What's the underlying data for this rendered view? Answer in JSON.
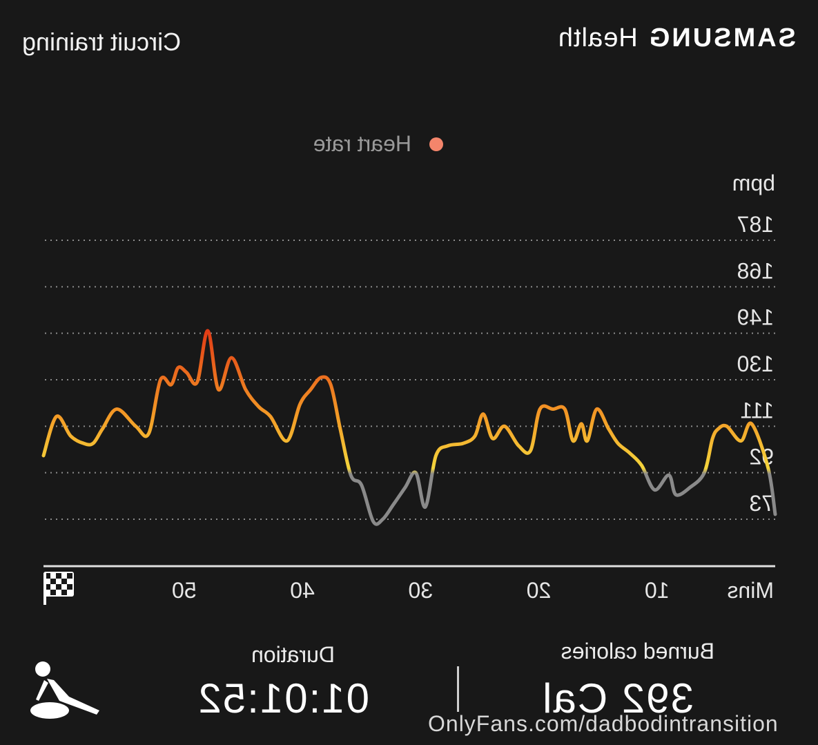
{
  "header": {
    "brand": "SAMSUNG",
    "brand_sub": "Health",
    "activity_title": "Circuit training"
  },
  "legend": {
    "label": "Heart rate",
    "dot_color": "#f4856b"
  },
  "chart_data": {
    "type": "line",
    "title": "",
    "xlabel": "Mins",
    "ylabel": "bpm",
    "x_ticks": [
      10,
      20,
      30,
      40,
      50
    ],
    "x_tick_labels": [
      "10",
      "20",
      "30",
      "40",
      "50"
    ],
    "xlim": [
      0,
      61.9
    ],
    "y_ticks": [
      73,
      92,
      111,
      130,
      149,
      168,
      187
    ],
    "y_tick_labels": [
      "73",
      "92",
      "111",
      "130",
      "149",
      "168",
      "187"
    ],
    "ylim": [
      73,
      187
    ],
    "grid": true,
    "end_icon": "checkered-flag-icon",
    "colors": {
      "low": "#8a8a8a",
      "mid": "#f4d53c",
      "high": "#e23c16"
    },
    "series": [
      {
        "name": "Heart rate",
        "x": [
          0,
          0.6,
          2.0,
          2.9,
          4.1,
          4.8,
          5.3,
          6.0,
          7.2,
          8.4,
          9.0,
          10.2,
          11.3,
          12.3,
          13.3,
          14.1,
          15.1,
          15.9,
          16.4,
          17.1,
          17.8,
          18.8,
          19.9,
          20.7,
          21.7,
          22.9,
          23.9,
          24.7,
          25.4,
          26.4,
          27.7,
          28.7,
          29.6,
          30.4,
          31.3,
          32.3,
          33.2,
          34.0,
          35.0,
          35.9,
          36.8,
          37.6,
          38.4,
          39.3,
          40.2,
          41.3,
          42.7,
          43.7,
          44.8,
          46.0,
          47.1,
          48.0,
          48.9,
          49.8,
          50.5,
          51.1,
          52.0,
          53.0,
          54.1,
          55.7,
          56.9,
          57.7,
          58.5,
          59.6,
          60.8,
          61.9
        ],
        "y": [
          75,
          94,
          112,
          105,
          111,
          110,
          106,
          92,
          86,
          83,
          91,
          85,
          95,
          100,
          104,
          110,
          118,
          105,
          112,
          105,
          118,
          118,
          118,
          101,
          103,
          111,
          106,
          116,
          107,
          104,
          103,
          99,
          78,
          92,
          86,
          79,
          73,
          72,
          87,
          91,
          110,
          128,
          131,
          126,
          120,
          105,
          115,
          119,
          126,
          139,
          126,
          150,
          129,
          133,
          135,
          128,
          130,
          108,
          111,
          118,
          110,
          104,
          104,
          107,
          115,
          99
        ]
      }
    ]
  },
  "stats": {
    "calories": {
      "label": "Burned calories",
      "value": "392 Cal"
    },
    "duration": {
      "label": "Duration",
      "value": "01:01:52"
    }
  },
  "exercise_icon": "circuit-training-icon",
  "watermark": "OnlyFans.com/dadbodintransition"
}
